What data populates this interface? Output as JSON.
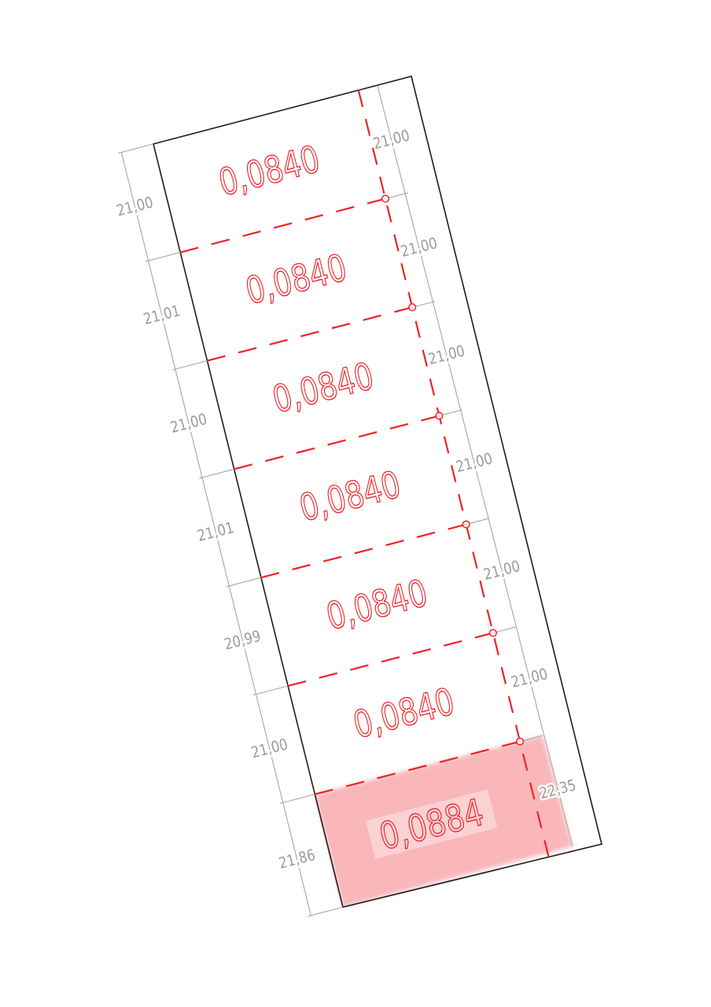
{
  "drawing": {
    "parcels": [
      {
        "area": "0,0840",
        "highlighted": false
      },
      {
        "area": "0,0840",
        "highlighted": false
      },
      {
        "area": "0,0840",
        "highlighted": false
      },
      {
        "area": "0,0840",
        "highlighted": false
      },
      {
        "area": "0,0840",
        "highlighted": false
      },
      {
        "area": "0,0840",
        "highlighted": false
      },
      {
        "area": "0,0884",
        "highlighted": true
      }
    ],
    "left_dimensions": [
      "21,00",
      "21,01",
      "21,00",
      "21,01",
      "20,99",
      "21,00",
      "21,86"
    ],
    "right_dimensions": [
      "21,00",
      "21,00",
      "21,00",
      "21,00",
      "21,00",
      "21,00",
      "22,35"
    ],
    "colors": {
      "background": "#ffffff",
      "boundary": "#1c1c1c",
      "dimension_line": "#a6a6a6",
      "dimension_text": "#9b9b9b",
      "division_line": "#ee2227",
      "area_text": "#ee2227",
      "node_fill": "#ffffff",
      "highlight_fill": "#f9b4b7",
      "label_backing": "#ffffff"
    }
  }
}
